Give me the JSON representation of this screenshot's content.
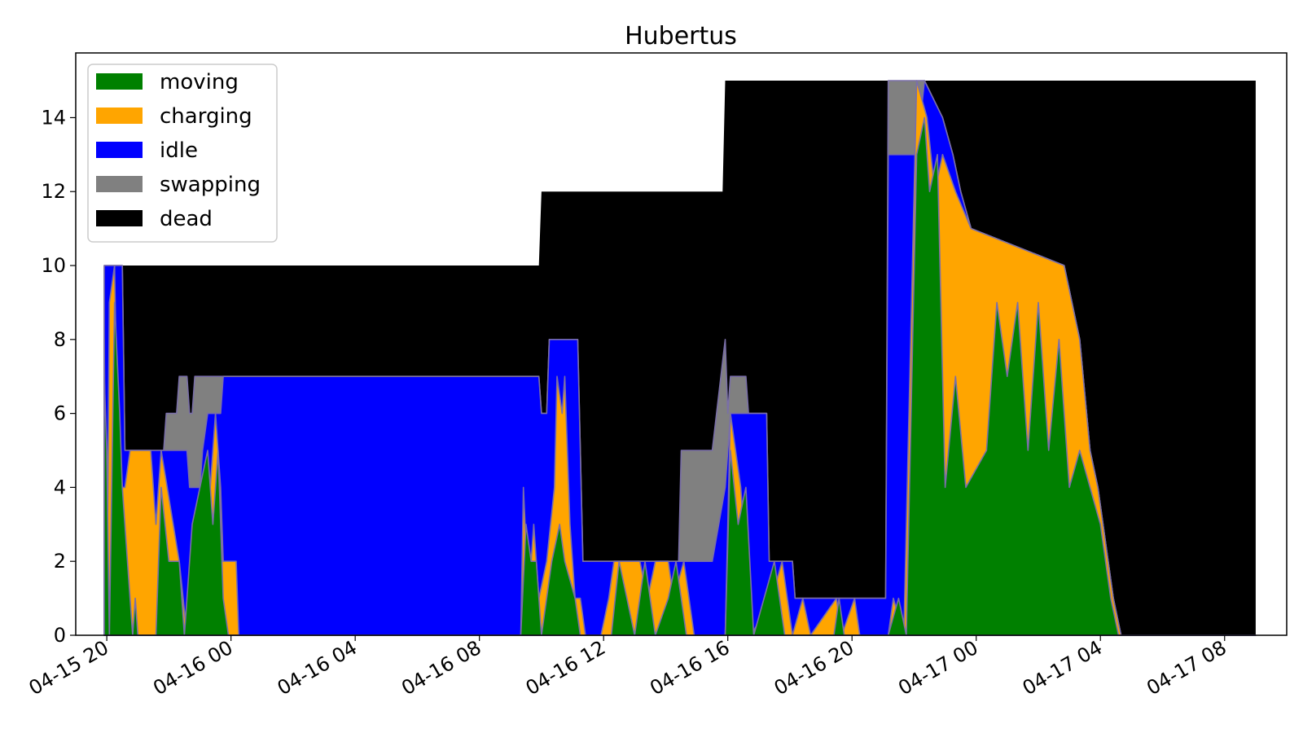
{
  "chart_data": {
    "type": "area",
    "title": "Hubertus",
    "xlabel": "",
    "ylabel": "",
    "x_start": "2024-04-15 19:00",
    "x_end": "2024-04-17 10:00",
    "x_ticks": [
      "04-15 20",
      "04-16 00",
      "04-16 04",
      "04-16 08",
      "04-16 12",
      "04-16 16",
      "04-16 20",
      "04-17 00",
      "04-17 04",
      "04-17 08"
    ],
    "x_tick_times": [
      "2024-04-15 20:00",
      "2024-04-16 00:00",
      "2024-04-16 04:00",
      "2024-04-16 08:00",
      "2024-04-16 12:00",
      "2024-04-16 16:00",
      "2024-04-16 20:00",
      "2024-04-17 00:00",
      "2024-04-17 04:00",
      "2024-04-17 08:00"
    ],
    "ylim": [
      0,
      15.75
    ],
    "y_ticks": [
      "0",
      "2",
      "4",
      "6",
      "8",
      "10",
      "12",
      "14"
    ],
    "y_tick_values": [
      0,
      2,
      4,
      6,
      8,
      10,
      12,
      14
    ],
    "legend": {
      "placement": "top-left",
      "entries": [
        "moving",
        "charging",
        "idle",
        "swapping",
        "dead"
      ]
    },
    "colors": {
      "moving": "#008000",
      "charging": "#ffa500",
      "idle": "#0000ff",
      "swapping": "#808080",
      "dead": "#000000",
      "edge": "#7a6fa8"
    },
    "series": [
      {
        "name": "dead",
        "total_fleet": true,
        "points": [
          [
            "2024-04-15 19:55",
            10
          ],
          [
            "2024-04-16 09:55",
            10
          ],
          [
            "2024-04-16 10:00",
            12
          ],
          [
            "2024-04-16 15:50",
            12
          ],
          [
            "2024-04-16 15:55",
            15
          ],
          [
            "2024-04-17 09:00",
            15
          ]
        ]
      },
      {
        "name": "swapping",
        "points": [
          [
            "2024-04-15 19:55",
            10
          ],
          [
            "2024-04-15 20:30",
            10
          ],
          [
            "2024-04-15 20:35",
            5
          ],
          [
            "2024-04-15 21:50",
            5
          ],
          [
            "2024-04-15 21:55",
            6
          ],
          [
            "2024-04-15 22:15",
            6
          ],
          [
            "2024-04-15 22:20",
            7
          ],
          [
            "2024-04-15 22:35",
            7
          ],
          [
            "2024-04-15 22:40",
            6
          ],
          [
            "2024-04-15 22:45",
            6
          ],
          [
            "2024-04-15 22:50",
            7
          ],
          [
            "2024-04-15 23:45",
            7
          ],
          [
            "2024-04-16 09:55",
            7
          ],
          [
            "2024-04-16 10:00",
            6
          ],
          [
            "2024-04-16 10:10",
            6
          ],
          [
            "2024-04-16 10:15",
            8
          ],
          [
            "2024-04-16 11:10",
            8
          ],
          [
            "2024-04-16 11:20",
            2
          ],
          [
            "2024-04-16 14:25",
            2
          ],
          [
            "2024-04-16 14:30",
            5
          ],
          [
            "2024-04-16 15:30",
            5
          ],
          [
            "2024-04-16 15:55",
            8
          ],
          [
            "2024-04-16 16:00",
            6
          ],
          [
            "2024-04-16 16:05",
            7
          ],
          [
            "2024-04-16 16:35",
            7
          ],
          [
            "2024-04-16 16:40",
            6
          ],
          [
            "2024-04-16 17:15",
            6
          ],
          [
            "2024-04-16 17:20",
            2
          ],
          [
            "2024-04-16 18:05",
            2
          ],
          [
            "2024-04-16 18:10",
            1
          ],
          [
            "2024-04-16 21:05",
            1
          ],
          [
            "2024-04-16 21:10",
            15
          ],
          [
            "2024-04-16 22:10",
            15
          ],
          [
            "2024-04-16 22:20",
            15
          ],
          [
            "2024-04-16 22:55",
            14
          ],
          [
            "2024-04-16 23:15",
            13
          ],
          [
            "2024-04-16 23:30",
            12
          ],
          [
            "2024-04-16 23:50",
            11
          ],
          [
            "2024-04-17 02:50",
            10
          ],
          [
            "2024-04-17 03:20",
            8
          ],
          [
            "2024-04-17 03:40",
            5
          ],
          [
            "2024-04-17 03:55",
            4
          ],
          [
            "2024-04-17 04:25",
            1
          ],
          [
            "2024-04-17 04:40",
            0
          ],
          [
            "2024-04-17 09:00",
            0
          ]
        ]
      },
      {
        "name": "idle",
        "points": [
          [
            "2024-04-15 19:55",
            10
          ],
          [
            "2024-04-15 20:30",
            10
          ],
          [
            "2024-04-15 20:35",
            5
          ],
          [
            "2024-04-15 21:55",
            5
          ],
          [
            "2024-04-15 22:10",
            5
          ],
          [
            "2024-04-15 22:35",
            5
          ],
          [
            "2024-04-15 22:40",
            4
          ],
          [
            "2024-04-15 23:00",
            4
          ],
          [
            "2024-04-15 23:05",
            5
          ],
          [
            "2024-04-15 23:15",
            6
          ],
          [
            "2024-04-15 23:40",
            6
          ],
          [
            "2024-04-15 23:45",
            7
          ],
          [
            "2024-04-16 09:55",
            7
          ],
          [
            "2024-04-16 10:00",
            6
          ],
          [
            "2024-04-16 10:10",
            6
          ],
          [
            "2024-04-16 10:15",
            8
          ],
          [
            "2024-04-16 11:10",
            8
          ],
          [
            "2024-04-16 11:20",
            2
          ],
          [
            "2024-04-16 15:30",
            2
          ],
          [
            "2024-04-16 15:55",
            4
          ],
          [
            "2024-04-16 16:05",
            6
          ],
          [
            "2024-04-16 16:40",
            6
          ],
          [
            "2024-04-16 17:15",
            6
          ],
          [
            "2024-04-16 17:20",
            2
          ],
          [
            "2024-04-16 18:05",
            2
          ],
          [
            "2024-04-16 18:10",
            1
          ],
          [
            "2024-04-16 21:05",
            1
          ],
          [
            "2024-04-16 21:10",
            13
          ],
          [
            "2024-04-16 22:05",
            13
          ],
          [
            "2024-04-16 22:20",
            15
          ],
          [
            "2024-04-16 22:55",
            14
          ],
          [
            "2024-04-16 23:15",
            13
          ],
          [
            "2024-04-16 23:30",
            12
          ],
          [
            "2024-04-16 23:50",
            11
          ],
          [
            "2024-04-17 02:50",
            10
          ],
          [
            "2024-04-17 03:20",
            8
          ],
          [
            "2024-04-17 03:40",
            5
          ],
          [
            "2024-04-17 03:55",
            4
          ],
          [
            "2024-04-17 04:25",
            1
          ],
          [
            "2024-04-17 04:40",
            0
          ],
          [
            "2024-04-17 09:00",
            0
          ]
        ]
      },
      {
        "name": "charging",
        "points": [
          [
            "2024-04-15 19:55",
            8
          ],
          [
            "2024-04-15 20:00",
            0
          ],
          [
            "2024-04-15 20:05",
            9
          ],
          [
            "2024-04-15 20:15",
            10
          ],
          [
            "2024-04-15 20:20",
            6
          ],
          [
            "2024-04-15 20:30",
            4
          ],
          [
            "2024-04-15 20:35",
            4
          ],
          [
            "2024-04-15 20:45",
            5
          ],
          [
            "2024-04-15 21:25",
            5
          ],
          [
            "2024-04-15 21:35",
            3
          ],
          [
            "2024-04-15 21:45",
            5
          ],
          [
            "2024-04-15 22:20",
            2
          ],
          [
            "2024-04-15 22:35",
            0
          ],
          [
            "2024-04-15 22:50",
            3
          ],
          [
            "2024-04-15 23:20",
            4
          ],
          [
            "2024-04-15 23:30",
            6
          ],
          [
            "2024-04-15 23:40",
            4
          ],
          [
            "2024-04-15 23:45",
            2
          ],
          [
            "2024-04-16 00:10",
            2
          ],
          [
            "2024-04-16 00:15",
            0
          ],
          [
            "2024-04-16 09:20",
            0
          ],
          [
            "2024-04-16 09:25",
            4
          ],
          [
            "2024-04-16 09:35",
            1
          ],
          [
            "2024-04-16 09:45",
            3
          ],
          [
            "2024-04-16 09:55",
            1
          ],
          [
            "2024-04-16 10:10",
            2
          ],
          [
            "2024-04-16 10:25",
            4
          ],
          [
            "2024-04-16 10:30",
            7
          ],
          [
            "2024-04-16 10:40",
            6
          ],
          [
            "2024-04-16 10:45",
            7
          ],
          [
            "2024-04-16 10:55",
            3
          ],
          [
            "2024-04-16 11:05",
            1
          ],
          [
            "2024-04-16 11:15",
            1
          ],
          [
            "2024-04-16 11:25",
            0
          ],
          [
            "2024-04-16 11:55",
            0
          ],
          [
            "2024-04-16 12:10",
            1
          ],
          [
            "2024-04-16 12:20",
            2
          ],
          [
            "2024-04-16 13:10",
            2
          ],
          [
            "2024-04-16 13:25",
            1
          ],
          [
            "2024-04-16 13:40",
            2
          ],
          [
            "2024-04-16 14:05",
            2
          ],
          [
            "2024-04-16 14:15",
            1
          ],
          [
            "2024-04-16 14:35",
            2
          ],
          [
            "2024-04-16 14:55",
            0
          ],
          [
            "2024-04-16 15:55",
            0
          ],
          [
            "2024-04-16 16:05",
            6
          ],
          [
            "2024-04-16 16:25",
            4
          ],
          [
            "2024-04-16 16:45",
            0
          ],
          [
            "2024-04-16 17:25",
            1
          ],
          [
            "2024-04-16 17:45",
            2
          ],
          [
            "2024-04-16 18:05",
            0
          ],
          [
            "2024-04-16 18:25",
            1
          ],
          [
            "2024-04-16 18:40",
            0
          ],
          [
            "2024-04-16 19:30",
            1
          ],
          [
            "2024-04-16 19:40",
            0
          ],
          [
            "2024-04-16 20:05",
            1
          ],
          [
            "2024-04-16 20:15",
            0
          ],
          [
            "2024-04-16 21:10",
            0
          ],
          [
            "2024-04-16 21:20",
            1
          ],
          [
            "2024-04-16 21:40",
            0
          ],
          [
            "2024-04-16 22:05",
            15
          ],
          [
            "2024-04-16 22:25",
            14
          ],
          [
            "2024-04-16 22:40",
            12
          ],
          [
            "2024-04-16 22:55",
            13
          ],
          [
            "2024-04-16 23:20",
            12
          ],
          [
            "2024-04-16 23:50",
            11
          ],
          [
            "2024-04-17 02:50",
            10
          ],
          [
            "2024-04-17 03:20",
            8
          ],
          [
            "2024-04-17 03:40",
            5
          ],
          [
            "2024-04-17 03:55",
            4
          ],
          [
            "2024-04-17 04:25",
            1
          ],
          [
            "2024-04-17 04:40",
            0
          ],
          [
            "2024-04-17 09:00",
            0
          ]
        ]
      },
      {
        "name": "moving",
        "points": [
          [
            "2024-04-15 19:55",
            7
          ],
          [
            "2024-04-15 20:00",
            5
          ],
          [
            "2024-04-15 20:05",
            0
          ],
          [
            "2024-04-15 20:15",
            9
          ],
          [
            "2024-04-15 20:25",
            6
          ],
          [
            "2024-04-15 20:30",
            4
          ],
          [
            "2024-04-15 20:40",
            2
          ],
          [
            "2024-04-15 20:50",
            0
          ],
          [
            "2024-04-15 20:55",
            1
          ],
          [
            "2024-04-15 21:00",
            0
          ],
          [
            "2024-04-15 21:35",
            0
          ],
          [
            "2024-04-15 21:45",
            4
          ],
          [
            "2024-04-15 22:00",
            2
          ],
          [
            "2024-04-15 22:20",
            2
          ],
          [
            "2024-04-15 22:30",
            0
          ],
          [
            "2024-04-15 22:45",
            3
          ],
          [
            "2024-04-15 23:00",
            4
          ],
          [
            "2024-04-15 23:15",
            5
          ],
          [
            "2024-04-15 23:25",
            3
          ],
          [
            "2024-04-15 23:35",
            5
          ],
          [
            "2024-04-15 23:45",
            1
          ],
          [
            "2024-04-15 23:55",
            0
          ],
          [
            "2024-04-16 09:20",
            0
          ],
          [
            "2024-04-16 09:30",
            3
          ],
          [
            "2024-04-16 09:40",
            2
          ],
          [
            "2024-04-16 09:50",
            2
          ],
          [
            "2024-04-16 10:00",
            0
          ],
          [
            "2024-04-16 10:20",
            2
          ],
          [
            "2024-04-16 10:35",
            3
          ],
          [
            "2024-04-16 10:45",
            2
          ],
          [
            "2024-04-16 11:05",
            1
          ],
          [
            "2024-04-16 11:15",
            0
          ],
          [
            "2024-04-16 12:15",
            0
          ],
          [
            "2024-04-16 12:30",
            2
          ],
          [
            "2024-04-16 12:45",
            1
          ],
          [
            "2024-04-16 13:00",
            0
          ],
          [
            "2024-04-16 13:20",
            2
          ],
          [
            "2024-04-16 13:40",
            0
          ],
          [
            "2024-04-16 14:05",
            1
          ],
          [
            "2024-04-16 14:20",
            2
          ],
          [
            "2024-04-16 14:40",
            0
          ],
          [
            "2024-04-16 15:55",
            0
          ],
          [
            "2024-04-16 16:05",
            5
          ],
          [
            "2024-04-16 16:20",
            3
          ],
          [
            "2024-04-16 16:35",
            4
          ],
          [
            "2024-04-16 16:50",
            0
          ],
          [
            "2024-04-16 17:30",
            2
          ],
          [
            "2024-04-16 17:50",
            0
          ],
          [
            "2024-04-16 19:25",
            0
          ],
          [
            "2024-04-16 19:35",
            1
          ],
          [
            "2024-04-16 19:45",
            0
          ],
          [
            "2024-04-16 21:10",
            0
          ],
          [
            "2024-04-16 21:30",
            1
          ],
          [
            "2024-04-16 21:45",
            0
          ],
          [
            "2024-04-16 22:05",
            13
          ],
          [
            "2024-04-16 22:20",
            14
          ],
          [
            "2024-04-16 22:30",
            12
          ],
          [
            "2024-04-16 22:45",
            13
          ],
          [
            "2024-04-16 23:00",
            4
          ],
          [
            "2024-04-16 23:20",
            7
          ],
          [
            "2024-04-16 23:40",
            4
          ],
          [
            "2024-04-17 00:20",
            5
          ],
          [
            "2024-04-17 00:40",
            9
          ],
          [
            "2024-04-17 01:00",
            7
          ],
          [
            "2024-04-17 01:20",
            9
          ],
          [
            "2024-04-17 01:40",
            5
          ],
          [
            "2024-04-17 02:00",
            9
          ],
          [
            "2024-04-17 02:20",
            5
          ],
          [
            "2024-04-17 02:40",
            8
          ],
          [
            "2024-04-17 03:00",
            4
          ],
          [
            "2024-04-17 03:20",
            5
          ],
          [
            "2024-04-17 03:40",
            4
          ],
          [
            "2024-04-17 04:00",
            3
          ],
          [
            "2024-04-17 04:20",
            1
          ],
          [
            "2024-04-17 04:35",
            0
          ],
          [
            "2024-04-17 09:00",
            0
          ]
        ]
      }
    ]
  }
}
